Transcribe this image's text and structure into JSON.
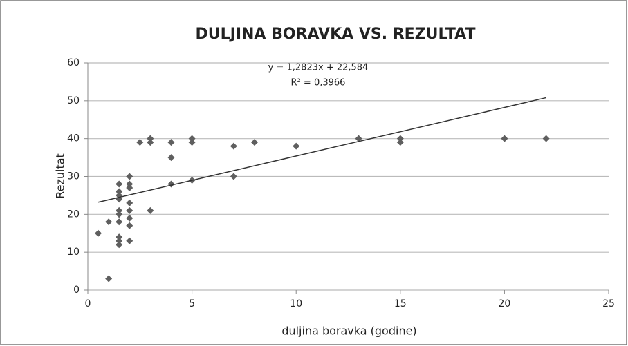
{
  "chart_data": {
    "type": "scatter",
    "title": "DULJINA BORAVKA VS. REZULTAT",
    "x_label": "duljina boravka (godine)",
    "y_label": "Rezultat",
    "annotations": [
      "y = 1,2823x + 22,584",
      "R² = 0,3966"
    ],
    "series": [
      {
        "name": "Rezultat",
        "color": "#5f5f5f",
        "x": [
          0.5,
          1,
          1,
          1.5,
          1.5,
          1.5,
          1.5,
          1.5,
          1.5,
          1.5,
          1.5,
          1.5,
          1.5,
          2,
          2,
          2,
          2,
          2,
          2,
          2,
          2,
          2.5,
          3,
          3,
          3,
          4,
          4,
          4,
          5,
          5,
          5,
          7,
          7,
          8,
          10,
          13,
          15,
          15,
          20,
          22
        ],
        "values": [
          15,
          18,
          3,
          28,
          26,
          25,
          24,
          21,
          20,
          18,
          14,
          13,
          12,
          30,
          28,
          27,
          23,
          21,
          19,
          17,
          13,
          39,
          40,
          39,
          21,
          39,
          35,
          28,
          40,
          39,
          29,
          38,
          30,
          39,
          38,
          40,
          40,
          39,
          40,
          40
        ]
      }
    ],
    "trendline": {
      "color": "#333333",
      "x": [
        0.5,
        22
      ],
      "values": [
        23.2,
        50.8
      ]
    },
    "xlim": [
      0,
      25
    ],
    "xticks": [
      0,
      5,
      10,
      15,
      20,
      25
    ],
    "ylim": [
      0,
      60
    ],
    "yticks": [
      0,
      10,
      20,
      30,
      40,
      50,
      60
    ],
    "grid": true
  }
}
